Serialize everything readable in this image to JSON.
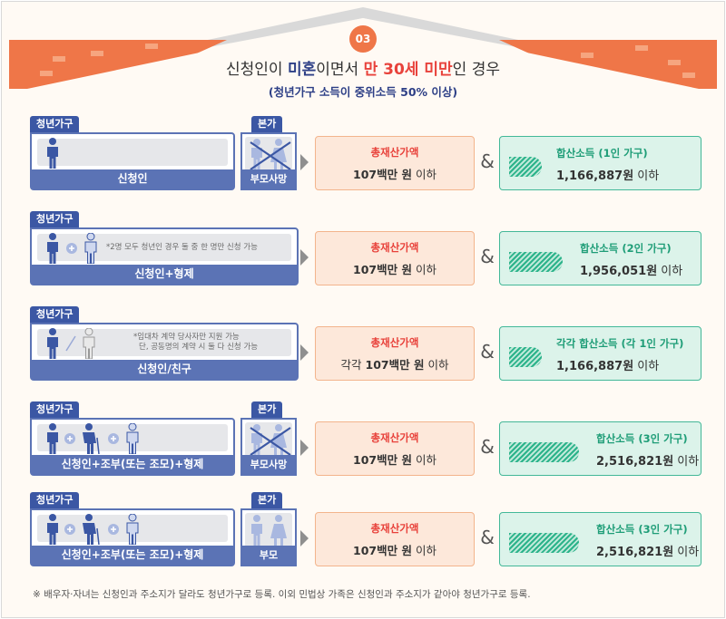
{
  "header": {
    "number": "03",
    "title_pre": "신청인이 ",
    "title_b1": "미혼",
    "title_mid": "이면서  ",
    "title_r1": "만 30세 미만",
    "title_post": "인 경우",
    "subtitle": "(청년가구 소득이 중위소득 50% 이상)"
  },
  "rows": [
    {
      "youth_tag": "청년가구",
      "youth_label": "신청인",
      "note": "",
      "parent_tag": "본가",
      "parent_label": "부모사망",
      "asset_title": "총재산가액",
      "asset_prefix": "",
      "asset_value": "107백만 원",
      "asset_suffix": " 이하",
      "income_title": "합산소득 (1인 가구)",
      "income_value": "1,166,887원",
      "income_suffix": " 이하",
      "bar_fraction": 0.2
    },
    {
      "youth_tag": "청년가구",
      "youth_label": "신청인+형제",
      "note": "*2명 모두 청년인 경우 둘 중 한 명만 신청 가능",
      "parent_tag": "",
      "parent_label": "",
      "asset_title": "총재산가액",
      "asset_prefix": "",
      "asset_value": "107백만 원",
      "asset_suffix": " 이하",
      "income_title": "합산소득 (2인 가구)",
      "income_value": "1,956,051원",
      "income_suffix": " 이하",
      "bar_fraction": 0.33
    },
    {
      "youth_tag": "청년가구",
      "youth_label": "신청인/친구",
      "note_line1": "*임대차 계약 당사자만 지원 가능",
      "note_line2": "단, 공동명의 계약 시 둘 다 신청 가능",
      "parent_tag": "",
      "parent_label": "",
      "asset_title": "총재산가액",
      "asset_prefix": "각각 ",
      "asset_value": "107백만 원",
      "asset_suffix": " 이하",
      "income_title": "각각 합산소득 (각 1인 가구)",
      "income_value": "1,166,887원",
      "income_suffix": " 이하",
      "bar_fraction": 0.2
    },
    {
      "youth_tag": "청년가구",
      "youth_label": "신청인+조부(또는 조모)+형제",
      "note": "",
      "parent_tag": "본가",
      "parent_label": "부모사망",
      "asset_title": "총재산가액",
      "asset_prefix": "",
      "asset_value": "107백만 원",
      "asset_suffix": " 이하",
      "income_title": "합산소득 (3인 가구)",
      "income_value": "2,516,821원",
      "income_suffix": " 이하",
      "bar_fraction": 0.43
    },
    {
      "youth_tag": "청년가구",
      "youth_label": "신청인+조부(또는 조모)+형제",
      "note": "",
      "parent_tag": "본가",
      "parent_label": "부모",
      "asset_title": "총재산가액",
      "asset_prefix": "",
      "asset_value": "107백만 원",
      "asset_suffix": " 이하",
      "income_title": "합산소득 (3인 가구)",
      "income_value": "2,516,821원",
      "income_suffix": " 이하",
      "bar_fraction": 0.43
    }
  ],
  "footnote": "※ 배우자·자녀는 신청인과 주소지가 달라도 청년가구로 등록. 이외 민법상 가족은 신청인과 주소지가 같아야 청년가구로 등록.",
  "colors": {
    "roof": "#ef7648",
    "navy": "#3b57a4",
    "asset_bg": "#fde8da",
    "income_bg": "#dcf3ea",
    "accent_red": "#e8423b",
    "accent_green": "#1e9d77"
  },
  "icons": [
    "young-person-icon",
    "sibling-icon",
    "friend-icon",
    "grandparent-icon",
    "deceased-parents-icon",
    "parents-icon",
    "plus-icon",
    "arrow-right-icon"
  ]
}
